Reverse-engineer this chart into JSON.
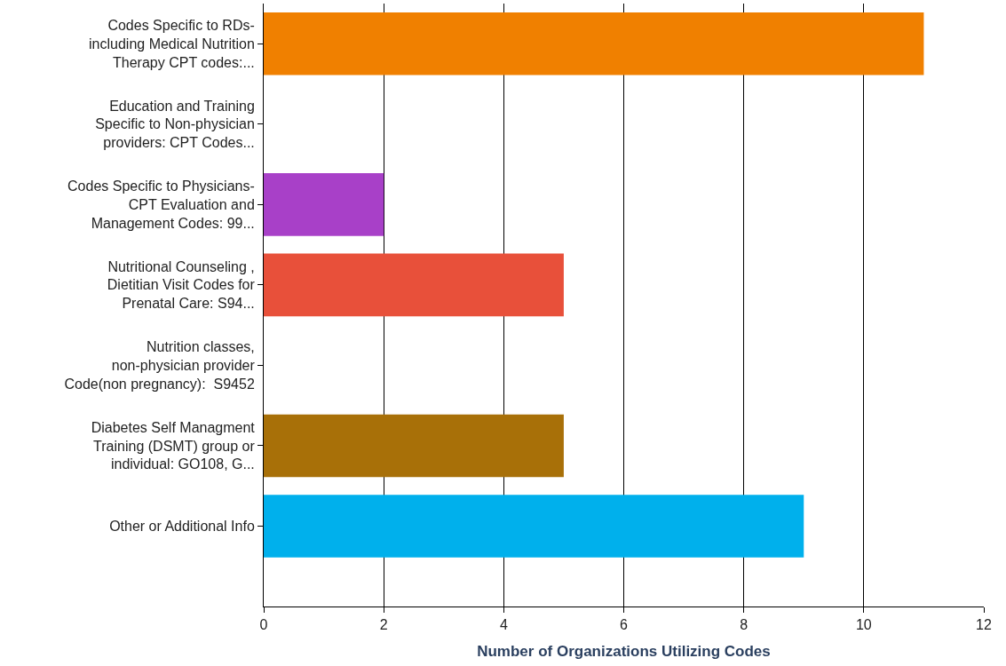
{
  "chart_data": {
    "type": "bar",
    "orientation": "horizontal",
    "xlabel": "Number of Organizations Utilizing Codes",
    "categories": [
      "Codes Specific to RDs-\nincluding Medical Nutrition\nTherapy CPT codes:...",
      "Education and Training\nSpecific to Non-physician\nproviders: CPT Codes...",
      "Codes Specific to Physicians-\nCPT Evaluation and\nManagement Codes: 99...",
      "Nutritional Counseling ,\nDietitian Visit Codes for\nPrenatal Care: S94...",
      "Nutrition classes,\nnon-physician provider\nCode(non pregnancy):  S9452",
      "Diabetes Self Managment\nTraining (DSMT) group or\nindividual: GO108, G...",
      "Other or Additional Info"
    ],
    "values": [
      11,
      null,
      2,
      5,
      null,
      5,
      9
    ],
    "colors": [
      "#f08000",
      null,
      "#a840c8",
      "#e8503a",
      null,
      "#a87008",
      "#00b0ec"
    ],
    "xlim": [
      0,
      12
    ],
    "xticks": [
      0,
      2,
      4,
      6,
      8,
      10,
      12
    ],
    "grid": "x",
    "legend": false
  }
}
